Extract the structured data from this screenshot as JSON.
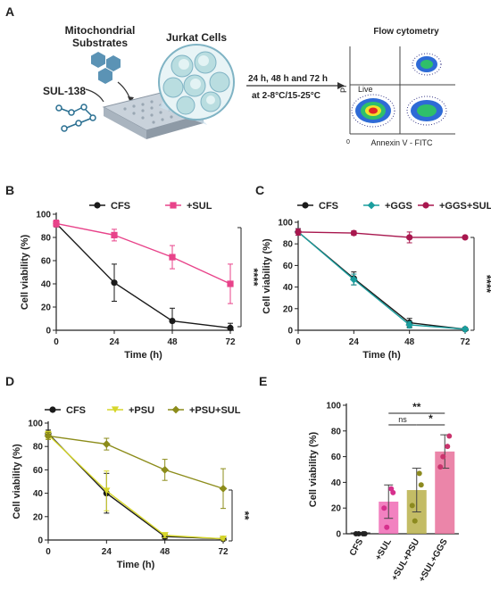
{
  "panels": {
    "A": {
      "label": "A",
      "substrates_line1": "Mitochondrial",
      "substrates_line2": "Substrates",
      "cells_label": "Jurkat Cells",
      "drug_label": "SUL-138",
      "time_text": "24 h, 48 h and 72 h",
      "temp_text": "at 2-8°C/15-25°C",
      "flow_title": "Flow cytometry",
      "flow_ylabel": "PI",
      "flow_xlabel": "Annexin V - FITC",
      "flow_live": "Live",
      "flow_zero": "0"
    },
    "B": {
      "label": "B"
    },
    "C": {
      "label": "C"
    },
    "D": {
      "label": "D"
    },
    "E": {
      "label": "E"
    }
  },
  "colors": {
    "cfs": "#1a1a1a",
    "sul": "#e8438a",
    "ggs": "#1a9e9e",
    "ggs_sul": "#a8174e",
    "psu": "#d6d62a",
    "psu_sul": "#8c8c1a",
    "bar_sul": "#f06bb5",
    "bar_psu": "#b8b04a",
    "bar_ggs": "#e8709a"
  },
  "chart_data": [
    {
      "id": "B",
      "type": "line",
      "x": [
        0,
        24,
        48,
        72
      ],
      "xlabel": "Time (h)",
      "ylabel": "Cell viability (%)",
      "xticks": [
        "0",
        "24",
        "48",
        "72"
      ],
      "yticks": [
        "0",
        "20",
        "40",
        "60",
        "80",
        "100"
      ],
      "xlim": [
        0,
        72
      ],
      "ylim": [
        0,
        100
      ],
      "legend_position": "top",
      "series": [
        {
          "name": "CFS",
          "values": [
            92,
            41,
            8,
            2
          ],
          "errors": [
            3,
            16,
            11,
            4
          ],
          "marker": "circle",
          "color": "#1a1a1a"
        },
        {
          "name": "+SUL",
          "values": [
            92,
            82,
            63,
            40
          ],
          "errors": [
            3,
            5,
            10,
            17
          ],
          "marker": "square",
          "color": "#e8438a"
        }
      ],
      "significance": "****"
    },
    {
      "id": "C",
      "type": "line",
      "x": [
        0,
        24,
        48,
        72
      ],
      "xlabel": "Time (h)",
      "ylabel": "Cell viability (%)",
      "xticks": [
        "0",
        "24",
        "48",
        "72"
      ],
      "yticks": [
        "0",
        "20",
        "40",
        "60",
        "80",
        "100"
      ],
      "xlim": [
        0,
        72
      ],
      "ylim": [
        0,
        100
      ],
      "legend_position": "top",
      "series": [
        {
          "name": "CFS",
          "values": [
            91,
            48,
            7,
            1
          ],
          "errors": [
            3,
            6,
            4,
            1
          ],
          "marker": "circle",
          "color": "#1a1a1a"
        },
        {
          "name": "+GGS",
          "values": [
            91,
            47,
            5,
            1
          ],
          "errors": [
            3,
            5,
            3,
            1
          ],
          "marker": "diamond",
          "color": "#1a9e9e"
        },
        {
          "name": "+GGS+SUL",
          "values": [
            91,
            90,
            86,
            86
          ],
          "errors": [
            3,
            2,
            5,
            1
          ],
          "marker": "circle",
          "color": "#a8174e"
        }
      ],
      "significance": "****"
    },
    {
      "id": "D",
      "type": "line",
      "x": [
        0,
        24,
        48,
        72
      ],
      "xlabel": "Time (h)",
      "ylabel": "Cell viability (%)",
      "xticks": [
        "0",
        "24",
        "48",
        "72"
      ],
      "yticks": [
        "0",
        "20",
        "40",
        "60",
        "80",
        "100"
      ],
      "xlim": [
        0,
        72
      ],
      "ylim": [
        0,
        100
      ],
      "legend_position": "top",
      "series": [
        {
          "name": "CFS",
          "values": [
            91,
            40,
            3,
            1
          ],
          "errors": [
            3,
            17,
            2,
            1
          ],
          "marker": "circle",
          "color": "#1a1a1a"
        },
        {
          "name": "+PSU",
          "values": [
            90,
            42,
            4,
            1
          ],
          "errors": [
            3,
            17,
            2,
            1
          ],
          "marker": "triangle",
          "color": "#d6d62a"
        },
        {
          "name": "+PSU+SUL",
          "values": [
            89,
            82,
            60,
            44
          ],
          "errors": [
            3,
            5,
            9,
            17
          ],
          "marker": "diamond",
          "color": "#8c8c1a"
        }
      ],
      "significance": "**"
    },
    {
      "id": "E",
      "type": "bar",
      "categories": [
        "CFS",
        "+SUL",
        "+SUL+PSU",
        "+SUL+GGS"
      ],
      "values": [
        0.5,
        25,
        34,
        64
      ],
      "errors": [
        0.5,
        13,
        17,
        13
      ],
      "points": [
        [
          0,
          0,
          0,
          0
        ],
        [
          20,
          35,
          5,
          32
        ],
        [
          22,
          47,
          10,
          38
        ],
        [
          52,
          68,
          60,
          76
        ]
      ],
      "ylabel": "Cell viability (%)",
      "yticks": [
        "0",
        "20",
        "40",
        "60",
        "80",
        "100"
      ],
      "ylim": [
        0,
        100
      ],
      "comparisons": [
        {
          "from": 1,
          "to": 3,
          "label": "**"
        },
        {
          "from": 1,
          "to": 2,
          "label": "ns"
        },
        {
          "from": 2,
          "to": 3,
          "label": "*"
        }
      ]
    }
  ]
}
